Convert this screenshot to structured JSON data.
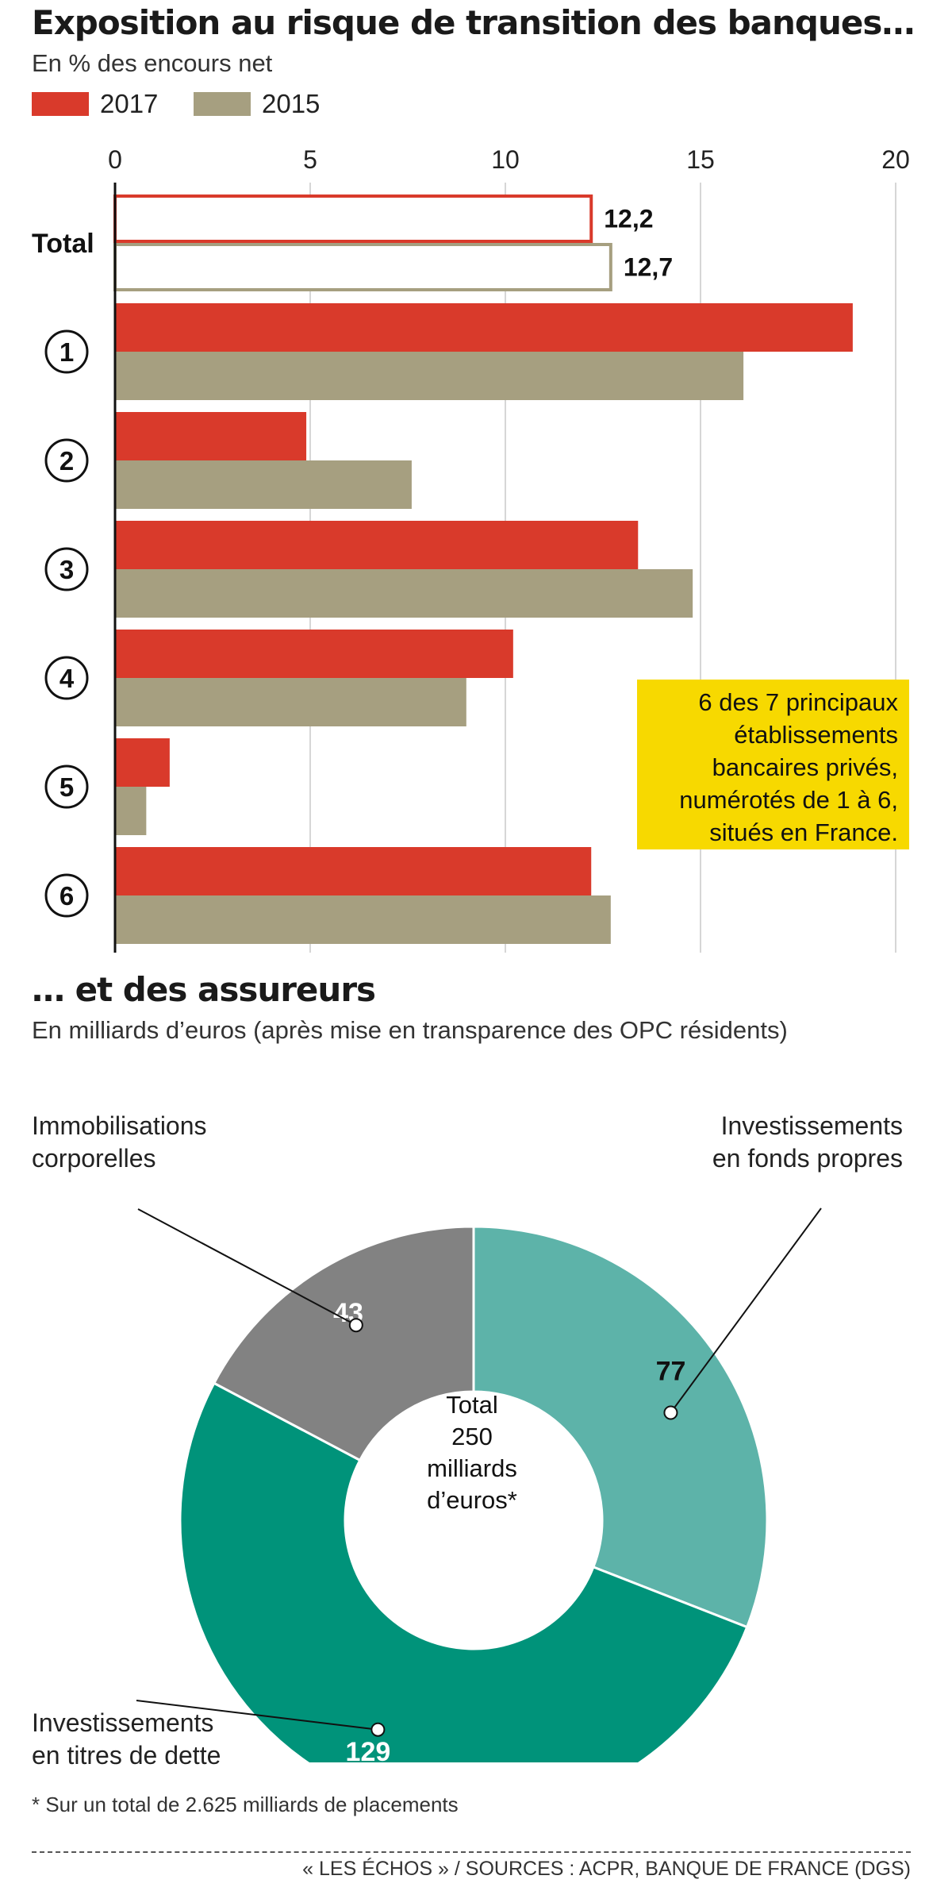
{
  "bank_chart": {
    "title": "Exposition au risque de transition des banques…",
    "subtitle": "En % des encours net",
    "legend": [
      {
        "label": "2017",
        "color": "#d93a2b"
      },
      {
        "label": "2015",
        "color": "#a69f80"
      }
    ],
    "note": "6 des 7 principaux établissements bancaires privés, numérotés de 1 à 6, situés en France."
  },
  "insurer_chart": {
    "title": "… et des assureurs",
    "subtitle": "En milliards d’euros (après mise en transparence des OPC résidents)",
    "center_lines": [
      "Total",
      "250",
      "milliards",
      "d’euros*"
    ],
    "label_fonds": [
      "Investissements",
      "en fonds propres"
    ],
    "label_immo": [
      "Immobilisations",
      "corporelles"
    ],
    "label_dette": [
      "Investissements",
      "en titres de dette"
    ]
  },
  "footnote": "* Sur un total de 2.625 milliards de placements",
  "source": "« LES ÉCHOS » / SOURCES : ACPR, BANQUE DE FRANCE (DGS)",
  "chart_data": [
    {
      "type": "bar",
      "orientation": "horizontal",
      "categories": [
        "Total",
        "1",
        "2",
        "3",
        "4",
        "5",
        "6"
      ],
      "series": [
        {
          "name": "2017",
          "color": "#d93a2b",
          "values": [
            12.2,
            18.9,
            4.9,
            13.4,
            10.2,
            1.4,
            12.2
          ]
        },
        {
          "name": "2015",
          "color": "#a69f80",
          "values": [
            12.7,
            16.1,
            7.6,
            14.8,
            9.0,
            0.8,
            12.7
          ]
        }
      ],
      "data_labels": {
        "Total": [
          "12,2",
          "12,7"
        ]
      },
      "xticks": [
        "0",
        "5",
        "10",
        "15",
        "20"
      ],
      "xlim": [
        0,
        20
      ],
      "grid": true,
      "legend": "top-left"
    },
    {
      "type": "pie",
      "donut": true,
      "slices": [
        {
          "name": "Investissements en fonds propres",
          "value": 77,
          "label": "77",
          "color": "#5db3a9"
        },
        {
          "name": "Investissements en titres de dette",
          "value": 129,
          "label": "129",
          "color": "#00937a"
        },
        {
          "name": "Immobilisations corporelles",
          "value": 43,
          "label": "43",
          "color": "#828282"
        }
      ],
      "total": 250
    }
  ]
}
